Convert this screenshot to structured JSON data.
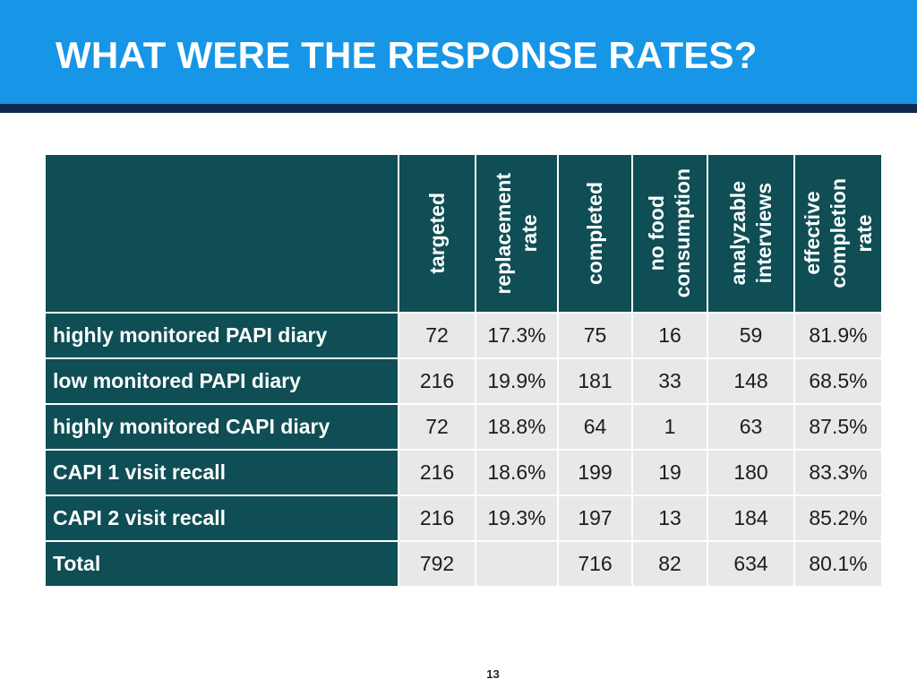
{
  "slide": {
    "title": "WHAT WERE THE RESPONSE RATES?",
    "page_number": "13"
  },
  "table": {
    "columns": [
      {
        "label": "targeted"
      },
      {
        "label": "replacement\nrate"
      },
      {
        "label": "completed"
      },
      {
        "label": "no food\nconsumption"
      },
      {
        "label": "analyzable\ninterviews"
      },
      {
        "label": "effective\ncompletion\nrate"
      }
    ],
    "rows": [
      {
        "label": "highly monitored PAPI diary",
        "cells": [
          "72",
          "17.3%",
          "75",
          "16",
          "59",
          "81.9%"
        ]
      },
      {
        "label": "low monitored PAPI diary",
        "cells": [
          "216",
          "19.9%",
          "181",
          "33",
          "148",
          "68.5%"
        ]
      },
      {
        "label": "highly monitored CAPI diary",
        "cells": [
          "72",
          "18.8%",
          "64",
          "1",
          "63",
          "87.5%"
        ]
      },
      {
        "label": "CAPI 1 visit recall",
        "cells": [
          "216",
          "18.6%",
          "199",
          "19",
          "180",
          "83.3%"
        ]
      },
      {
        "label": "CAPI 2 visit recall",
        "cells": [
          "216",
          "19.3%",
          "197",
          "13",
          "184",
          "85.2%"
        ]
      },
      {
        "label": "Total",
        "cells": [
          "792",
          "",
          "716",
          "82",
          "634",
          "80.1%"
        ]
      }
    ]
  },
  "colors": {
    "header_blue": "#1795e6",
    "header_rule_navy": "#0f2a4f",
    "table_dark_teal": "#0e4e54",
    "cell_gray": "#e6e8e9"
  }
}
